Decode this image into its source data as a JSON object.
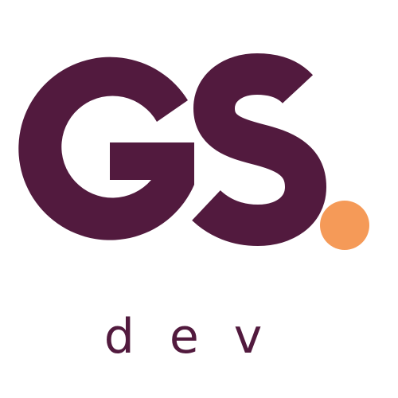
{
  "logo": {
    "mark_text": "GS",
    "sub_text": "dev",
    "colors": {
      "primary": "#521A3E",
      "accent": "#F59A58",
      "background": "#FFFFFF"
    }
  }
}
